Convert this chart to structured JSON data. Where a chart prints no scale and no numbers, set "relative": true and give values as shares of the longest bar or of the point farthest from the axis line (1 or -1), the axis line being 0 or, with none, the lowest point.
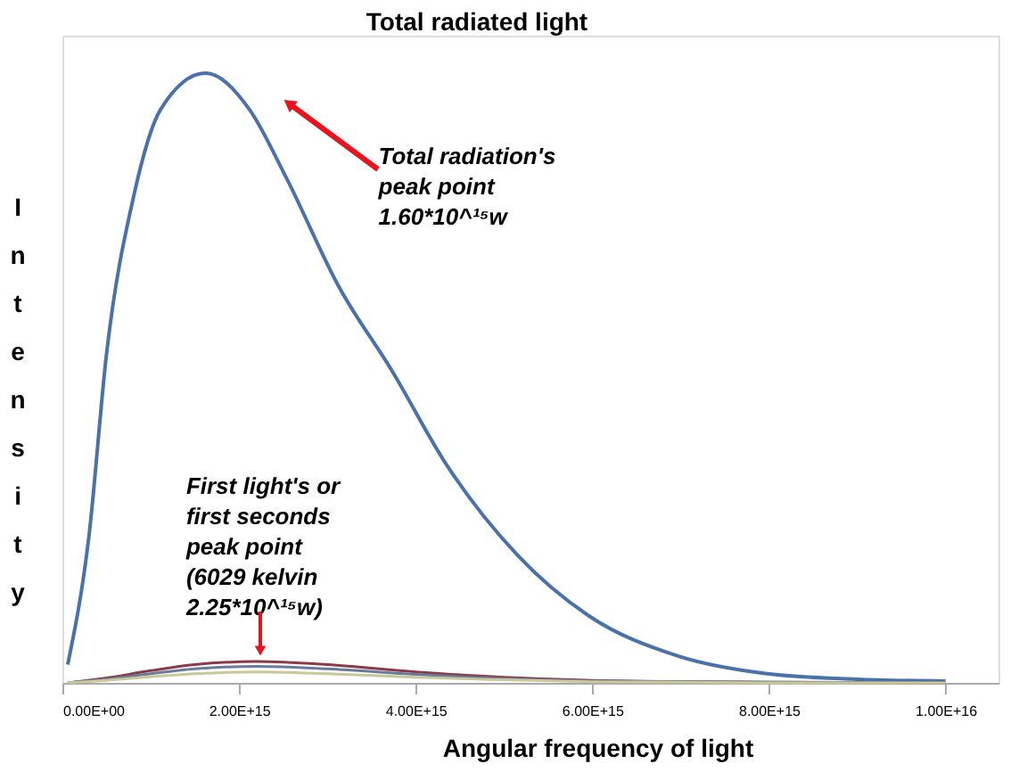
{
  "chart_data": {
    "type": "line",
    "title": "Total radiated light",
    "xlabel": "Angular frequency of light",
    "ylabel": "Intensity",
    "relative": true,
    "x": [
      60000000000000.0,
      300000000000000.0,
      500000000000000.0,
      810000000000000.0,
      1110000000000000.0,
      1620000000000000.0,
      2120000000000000.0,
      2530000000000000.0,
      3130000000000000.0,
      3740000000000000.0,
      4340000000000000.0,
      5150000000000000.0,
      5960000000000000.0,
      6970000000000000.0,
      7980000000000000.0,
      8990000000000000.0,
      1e+16
    ],
    "series": [
      {
        "color": "#4a72a8",
        "values": [
          0.03,
          0.24,
          0.54,
          0.8,
          0.94,
          1.0,
          0.94,
          0.83,
          0.65,
          0.51,
          0.36,
          0.21,
          0.11,
          0.044,
          0.015,
          0.006,
          0.003
        ]
      },
      {
        "color": "#8a3a4a",
        "x": [
          60000000000000.0,
          500000000000000.0,
          1000000000000000.0,
          1500000000000000.0,
          2200000000000000.0,
          3000000000000000.0,
          4000000000000000.0,
          5000000000000000.0,
          6000000000000000.0,
          8000000000000000.0,
          1e+16
        ],
        "values": [
          0.0,
          0.008,
          0.02,
          0.03,
          0.035,
          0.03,
          0.018,
          0.009,
          0.004,
          0.001,
          0.0
        ]
      },
      {
        "color": "#6a7a9a",
        "x": [
          60000000000000.0,
          500000000000000.0,
          1000000000000000.0,
          1500000000000000.0,
          2200000000000000.0,
          3000000000000000.0,
          4000000000000000.0,
          5000000000000000.0,
          6000000000000000.0,
          8000000000000000.0,
          1e+16
        ],
        "values": [
          0.0,
          0.006,
          0.015,
          0.023,
          0.027,
          0.023,
          0.014,
          0.007,
          0.003,
          0.001,
          0.0
        ]
      },
      {
        "color": "#c8c89a",
        "x": [
          60000000000000.0,
          500000000000000.0,
          1000000000000000.0,
          1500000000000000.0,
          2200000000000000.0,
          3000000000000000.0,
          4000000000000000.0,
          5000000000000000.0,
          6000000000000000.0,
          8000000000000000.0,
          1e+16
        ],
        "values": [
          0.0,
          0.004,
          0.01,
          0.015,
          0.018,
          0.015,
          0.009,
          0.005,
          0.002,
          0.0,
          0.0
        ]
      }
    ],
    "xlim": [
      0,
      1.06e+16
    ],
    "xticks": [
      {
        "value": 0,
        "label": "0.00E+00"
      },
      {
        "value": 2000000000000000.0,
        "label": "2.00E+15"
      },
      {
        "value": 4000000000000000.0,
        "label": "4.00E+15"
      },
      {
        "value": 6000000000000000.0,
        "label": "6.00E+15"
      },
      {
        "value": 8000000000000000.0,
        "label": "8.00E+15"
      },
      {
        "value": 1e+16,
        "label": "1.00E+16"
      }
    ],
    "annotations": [
      {
        "text": "Total radiation's\npeak point\n1.60*10^¹⁵w",
        "x": 2570000000000000.0,
        "y": 0.95
      },
      {
        "text": "First light's or\nfirst seconds\npeak point\n(6029 kelvin\n2.25*10^¹⁵w)",
        "x": 2250000000000000.0,
        "y": 0.035
      }
    ],
    "grid": false
  }
}
